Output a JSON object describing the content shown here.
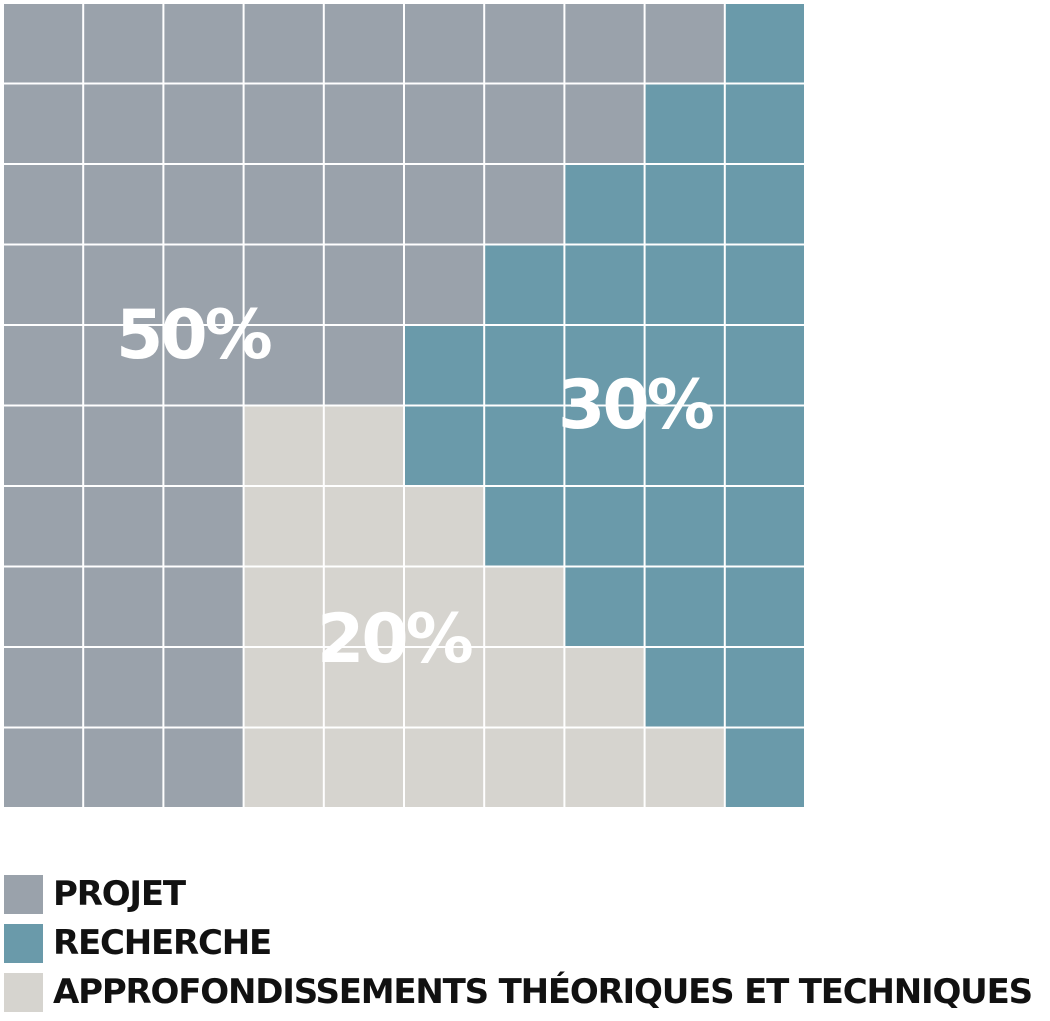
{
  "colors": {
    "projet": "#9aa2ab",
    "recherche": "#6a9aaa",
    "approfondissements": "#d6d4cf",
    "grid_line": "#ffffff",
    "label_text": "#ffffff",
    "legend_text": "#111111"
  },
  "chart_data": {
    "type": "waffle",
    "grid_rows": 10,
    "grid_cols": 10,
    "categories": [
      "PROJET",
      "RECHERCHE",
      "APPROFONDISSEMENTS THÉORIQUES ET TECHNIQUES"
    ],
    "series": [
      {
        "key": "projet",
        "name": "PROJET",
        "value": 50,
        "label": "50%",
        "color": "#9aa2ab"
      },
      {
        "key": "recherche",
        "name": "RECHERCHE",
        "value": 30,
        "label": "30%",
        "color": "#6a9aaa"
      },
      {
        "key": "approfondissements",
        "name": "APPROFONDISSEMENTS THÉORIQUES ET TECHNIQUES",
        "value": 20,
        "label": "20%",
        "color": "#d6d4cf"
      }
    ],
    "cells": [
      [
        "projet",
        "projet",
        "projet",
        "projet",
        "projet",
        "projet",
        "projet",
        "projet",
        "projet",
        "recherche"
      ],
      [
        "projet",
        "projet",
        "projet",
        "projet",
        "projet",
        "projet",
        "projet",
        "projet",
        "recherche",
        "recherche"
      ],
      [
        "projet",
        "projet",
        "projet",
        "projet",
        "projet",
        "projet",
        "projet",
        "recherche",
        "recherche",
        "recherche"
      ],
      [
        "projet",
        "projet",
        "projet",
        "projet",
        "projet",
        "projet",
        "recherche",
        "recherche",
        "recherche",
        "recherche"
      ],
      [
        "projet",
        "projet",
        "projet",
        "projet",
        "projet",
        "recherche",
        "recherche",
        "recherche",
        "recherche",
        "recherche"
      ],
      [
        "projet",
        "projet",
        "projet",
        "approfondissements",
        "approfondissements",
        "recherche",
        "recherche",
        "recherche",
        "recherche",
        "recherche"
      ],
      [
        "projet",
        "projet",
        "projet",
        "approfondissements",
        "approfondissements",
        "approfondissements",
        "recherche",
        "recherche",
        "recherche",
        "recherche"
      ],
      [
        "projet",
        "projet",
        "projet",
        "approfondissements",
        "approfondissements",
        "approfondissements",
        "approfondissements",
        "recherche",
        "recherche",
        "recherche"
      ],
      [
        "projet",
        "projet",
        "projet",
        "approfondissements",
        "approfondissements",
        "approfondissements",
        "approfondissements",
        "approfondissements",
        "recherche",
        "recherche"
      ],
      [
        "projet",
        "projet",
        "projet",
        "approfondissements",
        "approfondissements",
        "approfondissements",
        "approfondissements",
        "approfondissements",
        "approfondissements",
        "recherche"
      ]
    ],
    "legend_position": "bottom-left"
  }
}
